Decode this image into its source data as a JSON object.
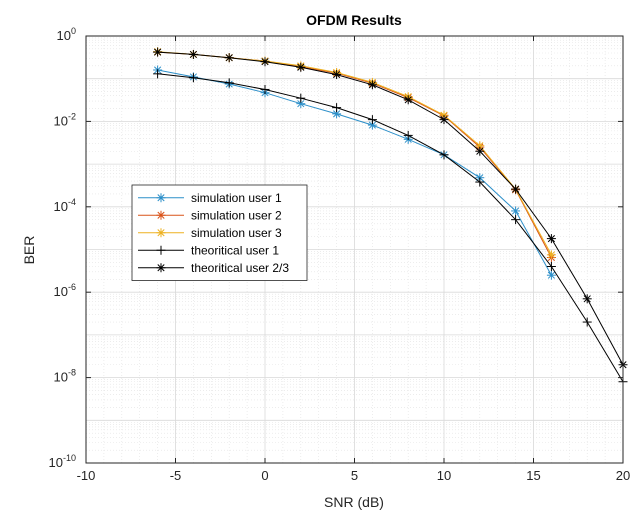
{
  "chart_data": {
    "type": "line",
    "title": "OFDM Results",
    "xlabel": "SNR (dB)",
    "ylabel": "BER",
    "xlim": [
      -10,
      20
    ],
    "ylim": [
      1e-10,
      1
    ],
    "yscale": "log",
    "grid": true,
    "minor_grid": true,
    "legend_position": "middle-left",
    "x_ticks": [
      "-10",
      "-5",
      "0",
      "5",
      "10",
      "15",
      "20"
    ],
    "y_ticks": [
      {
        "base": "10",
        "exp": "0"
      },
      {
        "base": "10",
        "exp": "-2"
      },
      {
        "base": "10",
        "exp": "-4"
      },
      {
        "base": "10",
        "exp": "-6"
      },
      {
        "base": "10",
        "exp": "-8"
      },
      {
        "base": "10",
        "exp": "-10"
      }
    ],
    "series": [
      {
        "name": "simulation user 1",
        "color": "#2c8fc9",
        "marker": "asterisk",
        "x": [
          -6,
          -4,
          -2,
          0,
          2,
          4,
          6,
          8,
          10,
          12,
          14,
          16
        ],
        "y": [
          0.16,
          0.11,
          0.075,
          0.047,
          0.026,
          0.015,
          0.0082,
          0.0038,
          0.00165,
          0.00048,
          8e-05,
          2.5e-06
        ]
      },
      {
        "name": "simulation user 2",
        "color": "#d95319",
        "marker": "asterisk",
        "x": [
          -6,
          -4,
          -2,
          0,
          2,
          4,
          6,
          8,
          10,
          12,
          14,
          16
        ],
        "y": [
          0.42,
          0.37,
          0.31,
          0.26,
          0.19,
          0.135,
          0.078,
          0.036,
          0.0135,
          0.0025,
          0.00025,
          6.5e-06
        ]
      },
      {
        "name": "simulation user 3",
        "color": "#edb120",
        "marker": "asterisk",
        "x": [
          -6,
          -4,
          -2,
          0,
          2,
          4,
          6,
          8,
          10,
          12,
          14,
          16
        ],
        "y": [
          0.43,
          0.37,
          0.31,
          0.26,
          0.2,
          0.14,
          0.082,
          0.038,
          0.014,
          0.0027,
          0.00026,
          7.5e-06
        ]
      },
      {
        "name": "theoritical user 1",
        "color": "#000000",
        "marker": "plus",
        "x": [
          -6,
          -4,
          -2,
          0,
          2,
          4,
          6,
          8,
          10,
          12,
          14,
          16,
          18,
          20
        ],
        "y": [
          0.13,
          0.105,
          0.08,
          0.056,
          0.035,
          0.021,
          0.011,
          0.0047,
          0.00165,
          0.00038,
          5e-05,
          4e-06,
          2e-07,
          8e-09
        ]
      },
      {
        "name": "theoritical user 2/3",
        "color": "#000000",
        "marker": "asterisk",
        "x": [
          -6,
          -4,
          -2,
          0,
          2,
          4,
          6,
          8,
          10,
          12,
          14,
          16,
          18,
          20
        ],
        "y": [
          0.42,
          0.37,
          0.31,
          0.25,
          0.185,
          0.125,
          0.072,
          0.032,
          0.011,
          0.002,
          0.00026,
          1.8e-05,
          7e-07,
          2e-08
        ]
      }
    ]
  }
}
